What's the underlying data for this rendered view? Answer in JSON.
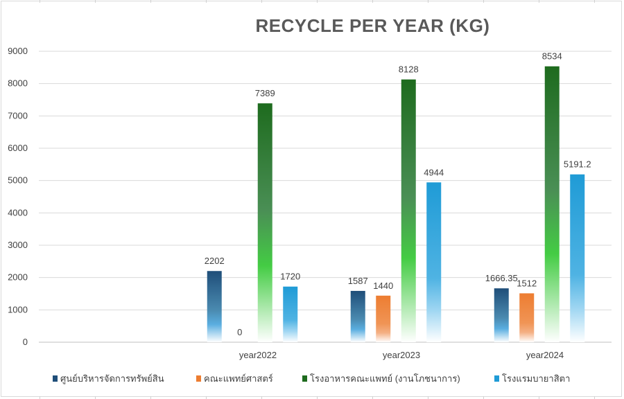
{
  "chart_data": {
    "type": "bar",
    "title": "RECYCLE PER YEAR (KG)",
    "xlabel": "",
    "ylabel": "",
    "ylim": [
      0,
      9000
    ],
    "yticks": [
      "0",
      "1000",
      "2000",
      "3000",
      "4000",
      "5000",
      "6000",
      "7000",
      "8000",
      "9000"
    ],
    "grid": true,
    "legend_position": "bottom",
    "categories": [
      "year2022",
      "year2023",
      "year2024"
    ],
    "series": [
      {
        "name": "ศูนย์บริหารจัดการทรัพย์สิน",
        "color": "#1f4e79",
        "values": [
          2202,
          1587,
          1666.35
        ],
        "labels": [
          "2202",
          "1587",
          "1666.35"
        ]
      },
      {
        "name": "คณะแพทย์ศาสตร์",
        "color": "#ed7d31",
        "values": [
          0,
          1440,
          1512
        ],
        "labels": [
          "0",
          "1440",
          "1512"
        ]
      },
      {
        "name": "โรงอาหารคณะแพทย์ (งานโภชนาการ)",
        "color": "#1e6b1e",
        "values": [
          7389,
          8128,
          8534
        ],
        "labels": [
          "7389",
          "8128",
          "8534"
        ]
      },
      {
        "name": "โรงแรมบายาสิตา",
        "color": "#1f9bd6",
        "values": [
          1720,
          4944,
          5191.2
        ],
        "labels": [
          "1720",
          "4944",
          "5191.2"
        ]
      }
    ]
  }
}
